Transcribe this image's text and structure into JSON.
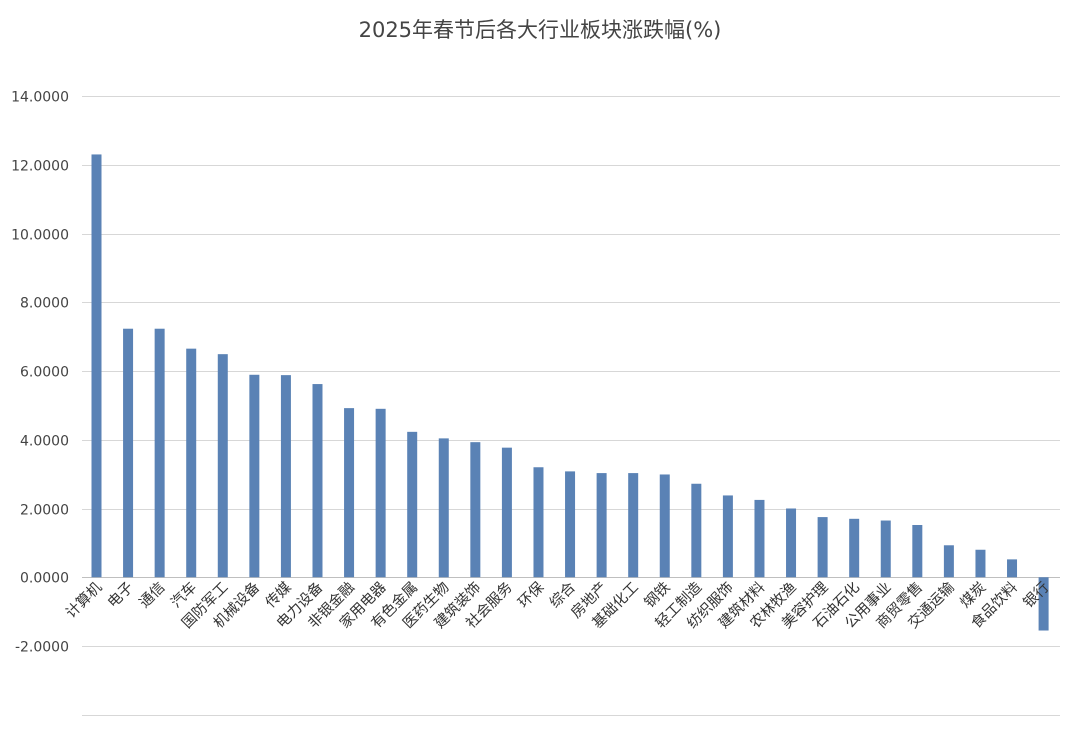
{
  "chart_data": {
    "type": "bar",
    "title": "2025年春节后各大行业板块涨跌幅(%)",
    "xlabel": "",
    "ylabel": "",
    "ylim": [
      -2,
      14
    ],
    "yticks": [
      14,
      12,
      10,
      8,
      6,
      4,
      2,
      0,
      -2
    ],
    "ytick_labels": [
      "14.0000",
      "12.0000",
      "10.0000",
      "8.0000",
      "6.0000",
      "4.0000",
      "2.0000",
      "0.0000",
      "-2.0000"
    ],
    "grid": true,
    "legend": "none",
    "bar_color": "#5a82b5",
    "categories": [
      "计算机",
      "电子",
      "通信",
      "汽车",
      "国防军工",
      "机械设备",
      "传媒",
      "电力设备",
      "非银金融",
      "家用电器",
      "有色金属",
      "医药生物",
      "建筑装饰",
      "社会服务",
      "环保",
      "综合",
      "房地产",
      "基础化工",
      "钢铁",
      "轻工制造",
      "纺织服饰",
      "建筑材料",
      "农林牧渔",
      "美容护理",
      "石油石化",
      "公用事业",
      "商贸零售",
      "交通运输",
      "煤炭",
      "食品饮料",
      "银行"
    ],
    "values": [
      12.3,
      7.23,
      7.23,
      6.65,
      6.49,
      5.89,
      5.88,
      5.62,
      4.92,
      4.9,
      4.23,
      4.04,
      3.93,
      3.77,
      3.2,
      3.08,
      3.03,
      3.03,
      2.99,
      2.72,
      2.38,
      2.25,
      2.0,
      1.75,
      1.7,
      1.65,
      1.52,
      0.93,
      0.8,
      0.52,
      -1.55
    ]
  }
}
